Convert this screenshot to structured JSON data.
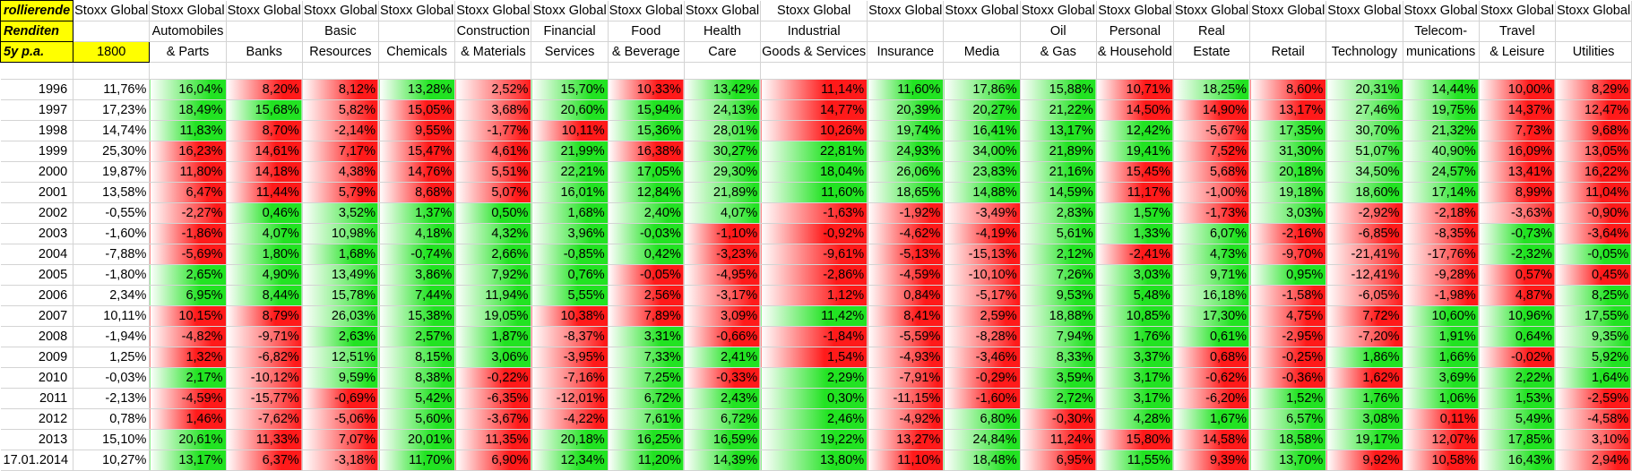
{
  "sheet_title_rows": [
    "rollierende",
    "Renditen",
    "5y p.a."
  ],
  "header_prefix": "Stoxx Global",
  "base_label": "1800",
  "sectors": [
    [
      "Automobiles",
      "& Parts"
    ],
    [
      "",
      "Banks"
    ],
    [
      "Basic",
      "Resources"
    ],
    [
      "",
      "Chemicals"
    ],
    [
      "Construction",
      "& Materials"
    ],
    [
      "Financial",
      "Services"
    ],
    [
      "Food",
      "& Beverage"
    ],
    [
      "Health",
      "Care"
    ],
    [
      "Industrial",
      "Goods & Services"
    ],
    [
      "",
      "Insurance"
    ],
    [
      "",
      "Media"
    ],
    [
      "Oil",
      "& Gas"
    ],
    [
      "Personal",
      "& Household"
    ],
    [
      "Real",
      "Estate"
    ],
    [
      "",
      "Retail"
    ],
    [
      "",
      "Technology"
    ],
    [
      "Telecom-",
      "munications"
    ],
    [
      "Travel",
      "& Leisure"
    ],
    [
      "",
      "Utilities"
    ]
  ],
  "colors": {
    "green": "#22e322",
    "red": "#ff1a1a",
    "base": "#ffffff",
    "header_fill": "#ffff00"
  },
  "rows": [
    {
      "year": "1996",
      "values": [
        "11,76%",
        "16,04%",
        "8,20%",
        "8,12%",
        "13,28%",
        "2,52%",
        "15,70%",
        "10,33%",
        "13,42%",
        "11,14%",
        "11,60%",
        "17,86%",
        "15,88%",
        "10,71%",
        "18,25%",
        "8,60%",
        "20,31%",
        "14,44%",
        "10,00%",
        "8,29%"
      ]
    },
    {
      "year": "1997",
      "values": [
        "17,23%",
        "18,49%",
        "15,68%",
        "5,82%",
        "15,05%",
        "3,68%",
        "20,60%",
        "15,94%",
        "24,13%",
        "14,77%",
        "20,39%",
        "20,27%",
        "21,22%",
        "14,50%",
        "14,90%",
        "13,17%",
        "27,46%",
        "19,75%",
        "14,37%",
        "12,47%"
      ]
    },
    {
      "year": "1998",
      "values": [
        "14,74%",
        "11,83%",
        "8,70%",
        "-2,14%",
        "9,55%",
        "-1,77%",
        "10,11%",
        "15,36%",
        "28,01%",
        "10,26%",
        "19,74%",
        "16,41%",
        "13,17%",
        "12,42%",
        "-5,67%",
        "17,35%",
        "30,70%",
        "21,32%",
        "7,73%",
        "9,68%"
      ]
    },
    {
      "year": "1999",
      "values": [
        "25,30%",
        "16,23%",
        "14,61%",
        "7,17%",
        "15,47%",
        "4,61%",
        "21,99%",
        "16,38%",
        "30,27%",
        "22,81%",
        "24,93%",
        "34,00%",
        "21,89%",
        "19,41%",
        "7,52%",
        "31,30%",
        "51,07%",
        "40,90%",
        "16,09%",
        "13,05%"
      ]
    },
    {
      "year": "2000",
      "values": [
        "19,87%",
        "11,80%",
        "14,18%",
        "4,38%",
        "14,76%",
        "5,51%",
        "22,21%",
        "17,05%",
        "29,30%",
        "18,04%",
        "26,06%",
        "23,83%",
        "21,16%",
        "15,45%",
        "5,68%",
        "20,18%",
        "34,50%",
        "24,57%",
        "13,41%",
        "16,22%"
      ]
    },
    {
      "year": "2001",
      "values": [
        "13,58%",
        "6,47%",
        "11,44%",
        "5,79%",
        "8,68%",
        "5,07%",
        "16,01%",
        "12,84%",
        "21,89%",
        "11,60%",
        "18,65%",
        "14,88%",
        "14,59%",
        "11,17%",
        "-1,00%",
        "19,18%",
        "18,60%",
        "17,14%",
        "8,99%",
        "11,04%"
      ]
    },
    {
      "year": "2002",
      "values": [
        "-0,55%",
        "-2,27%",
        "0,46%",
        "3,52%",
        "1,37%",
        "0,50%",
        "1,68%",
        "2,40%",
        "4,07%",
        "-1,63%",
        "-1,92%",
        "-3,49%",
        "2,83%",
        "1,57%",
        "-1,73%",
        "3,03%",
        "-2,92%",
        "-2,18%",
        "-3,63%",
        "-0,90%"
      ]
    },
    {
      "year": "2003",
      "values": [
        "-1,60%",
        "-1,86%",
        "4,07%",
        "10,98%",
        "4,18%",
        "4,32%",
        "3,96%",
        "-0,03%",
        "-1,10%",
        "-0,92%",
        "-4,62%",
        "-4,19%",
        "5,61%",
        "1,33%",
        "6,07%",
        "-2,16%",
        "-6,85%",
        "-8,35%",
        "-0,73%",
        "-3,64%"
      ]
    },
    {
      "year": "2004",
      "values": [
        "-7,88%",
        "-5,69%",
        "1,80%",
        "1,68%",
        "-0,74%",
        "2,66%",
        "-0,85%",
        "0,42%",
        "-3,23%",
        "-9,61%",
        "-5,13%",
        "-15,13%",
        "2,12%",
        "-2,41%",
        "4,73%",
        "-9,70%",
        "-21,41%",
        "-17,76%",
        "-2,32%",
        "-0,05%"
      ]
    },
    {
      "year": "2005",
      "values": [
        "-1,80%",
        "2,65%",
        "4,90%",
        "13,49%",
        "3,86%",
        "7,92%",
        "0,76%",
        "-0,05%",
        "-4,95%",
        "-2,86%",
        "-4,59%",
        "-10,10%",
        "7,26%",
        "3,03%",
        "9,71%",
        "0,95%",
        "-12,41%",
        "-9,28%",
        "0,57%",
        "0,45%"
      ]
    },
    {
      "year": "2006",
      "values": [
        "2,34%",
        "6,95%",
        "8,44%",
        "15,78%",
        "7,44%",
        "11,94%",
        "5,55%",
        "2,56%",
        "-3,17%",
        "1,12%",
        "0,84%",
        "-5,17%",
        "9,53%",
        "5,48%",
        "16,18%",
        "-1,58%",
        "-6,05%",
        "-1,98%",
        "4,87%",
        "8,25%"
      ]
    },
    {
      "year": "2007",
      "values": [
        "10,11%",
        "10,15%",
        "8,79%",
        "26,03%",
        "15,38%",
        "19,05%",
        "10,38%",
        "7,89%",
        "3,09%",
        "11,42%",
        "8,41%",
        "2,59%",
        "18,88%",
        "10,85%",
        "17,30%",
        "4,75%",
        "7,72%",
        "10,60%",
        "10,96%",
        "17,55%"
      ]
    },
    {
      "year": "2008",
      "values": [
        "-1,94%",
        "-4,82%",
        "-9,71%",
        "2,63%",
        "2,57%",
        "1,87%",
        "-8,37%",
        "3,31%",
        "-0,66%",
        "-1,84%",
        "-5,59%",
        "-8,28%",
        "7,94%",
        "1,76%",
        "0,61%",
        "-2,95%",
        "-7,20%",
        "1,91%",
        "0,64%",
        "9,35%"
      ]
    },
    {
      "year": "2009",
      "values": [
        "1,25%",
        "1,32%",
        "-6,82%",
        "12,51%",
        "8,15%",
        "3,06%",
        "-3,95%",
        "7,33%",
        "2,41%",
        "1,54%",
        "-4,93%",
        "-3,46%",
        "8,33%",
        "3,37%",
        "0,68%",
        "-0,25%",
        "1,86%",
        "1,66%",
        "-0,02%",
        "5,92%"
      ]
    },
    {
      "year": "2010",
      "values": [
        "-0,03%",
        "2,17%",
        "-10,12%",
        "9,59%",
        "8,38%",
        "-0,22%",
        "-7,16%",
        "7,25%",
        "-0,33%",
        "2,29%",
        "-7,91%",
        "-0,29%",
        "3,59%",
        "3,17%",
        "-0,62%",
        "-0,36%",
        "1,62%",
        "3,69%",
        "2,22%",
        "1,64%"
      ]
    },
    {
      "year": "2011",
      "values": [
        "-2,13%",
        "-4,59%",
        "-15,77%",
        "-0,69%",
        "5,42%",
        "-6,35%",
        "-12,01%",
        "6,72%",
        "2,43%",
        "0,30%",
        "-11,15%",
        "-1,60%",
        "2,72%",
        "3,17%",
        "-6,20%",
        "1,52%",
        "1,76%",
        "1,06%",
        "1,53%",
        "-2,59%"
      ]
    },
    {
      "year": "2012",
      "values": [
        "0,78%",
        "1,46%",
        "-7,62%",
        "-5,06%",
        "5,60%",
        "-3,67%",
        "-4,22%",
        "7,61%",
        "6,72%",
        "2,46%",
        "-4,92%",
        "6,80%",
        "-0,30%",
        "4,28%",
        "1,67%",
        "6,57%",
        "3,08%",
        "0,11%",
        "5,49%",
        "-4,58%"
      ]
    },
    {
      "year": "2013",
      "values": [
        "15,10%",
        "20,61%",
        "11,33%",
        "7,07%",
        "20,01%",
        "11,35%",
        "20,18%",
        "16,25%",
        "16,59%",
        "19,22%",
        "13,27%",
        "24,84%",
        "11,24%",
        "15,80%",
        "14,58%",
        "18,58%",
        "19,17%",
        "12,07%",
        "17,85%",
        "3,10%"
      ]
    },
    {
      "year": "17.01.2014",
      "values": [
        "10,27%",
        "13,17%",
        "6,37%",
        "-3,18%",
        "11,70%",
        "6,90%",
        "12,34%",
        "11,20%",
        "14,39%",
        "13,80%",
        "11,10%",
        "18,48%",
        "6,95%",
        "11,55%",
        "9,39%",
        "13,70%",
        "9,92%",
        "10,58%",
        "16,43%",
        "2,94%"
      ]
    }
  ]
}
